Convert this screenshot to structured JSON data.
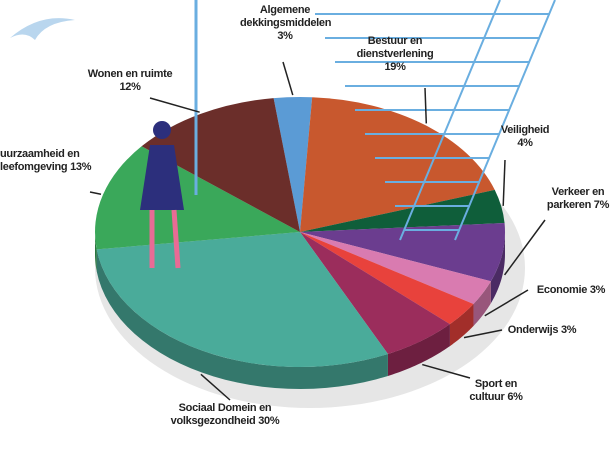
{
  "chart_data": {
    "type": "pie",
    "categories": [
      "Algemene dekkingsmiddelen",
      "Bestuur en dienstverlening",
      "Veiligheid",
      "Verkeer en parkeren",
      "Economie",
      "Onderwijs",
      "Sport en cultuur",
      "Sociaal Domein en volksgezondheid",
      "uurzaamheid en leefomgeving",
      "Wonen en ruimte"
    ],
    "values": [
      3,
      19,
      4,
      7,
      3,
      3,
      6,
      30,
      13,
      12
    ],
    "value_labels": [
      "3%",
      "19%",
      "4%",
      "7%",
      "3%",
      "3%",
      "6%",
      "30%",
      "13%",
      "12%"
    ],
    "colors": [
      "#5b9bd5",
      "#c8582e",
      "#0f5e3a",
      "#6b3d8f",
      "#d97bb0",
      "#e8423c",
      "#9b2d5c",
      "#4aab9a",
      "#3aa85a",
      "#6b2e2a"
    ]
  }
}
